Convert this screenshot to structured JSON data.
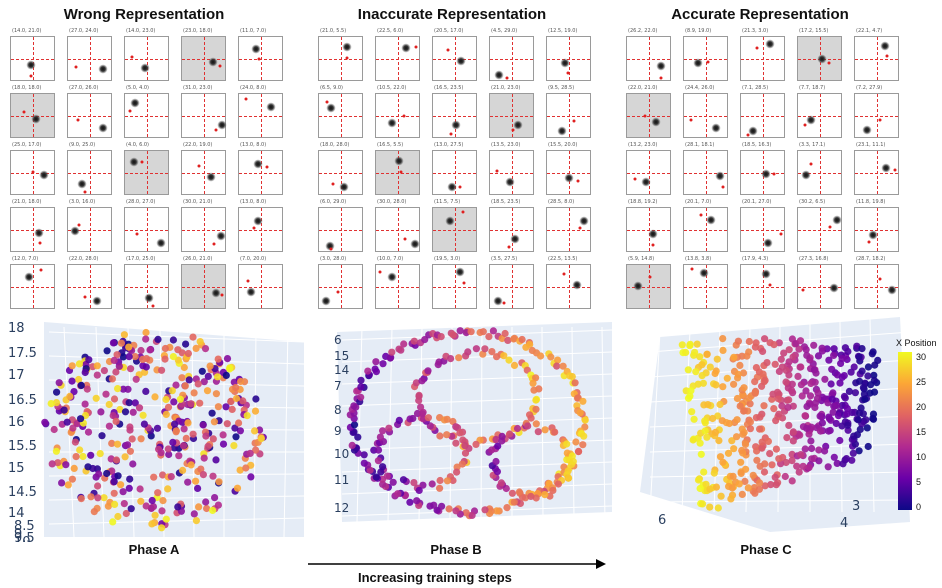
{
  "titles": {
    "wrong": "Wrong Representation",
    "inaccurate": "Inaccurate Representation",
    "accurate": "Accurate Representation"
  },
  "phases": {
    "a": "Phase A",
    "b": "Phase B",
    "c": "Phase C"
  },
  "arrow_label": "Increasing training steps",
  "colorbar": {
    "title": "X Position",
    "ticks": [
      "30",
      "25",
      "20",
      "15",
      "10",
      "5",
      "0"
    ]
  },
  "colors": {
    "crosshair": "#e03131",
    "shaded_cell": "#d6d6d6",
    "colormap": [
      "#0d0887",
      "#6a00a8",
      "#b12a90",
      "#e16462",
      "#fca636",
      "#f0f921"
    ]
  },
  "panel_labels": {
    "wrong": [
      "(14.0, 21.0)",
      "(27.0, 24.0)",
      "(14.0, 23.0)",
      "(23.0, 18.0)",
      "(11.0, 7.0)",
      "(18.0, 18.0)",
      "(27.0, 26.0)",
      "(5.0, 4.0)",
      "(31.0, 23.0)",
      "(24.0, 8.0)",
      "(25.0, 17.0)",
      "(9.0, 25.0)",
      "(4.0, 6.0)",
      "(22.0, 19.0)",
      "(13.0, 8.0)",
      "(21.0, 18.0)",
      "(3.0, 16.0)",
      "(28.0, 27.0)",
      "(30.0, 21.0)",
      "(13.0, 8.0)",
      "(12.0, 7.0)",
      "(22.0, 28.0)",
      "(17.0, 25.0)",
      "(26.0, 21.0)",
      "(7.0, 20.0)"
    ],
    "inaccurate": [
      "(21.0, 5.5)",
      "(22.5, 6.0)",
      "(20.5, 17.0)",
      "(4.5, 29.0)",
      "(12.5, 19.0)",
      "(6.5, 9.0)",
      "(10.5, 22.0)",
      "(16.5, 23.5)",
      "(21.0, 23.0)",
      "(9.5, 28.5)",
      "(18.0, 28.0)",
      "(16.5, 5.5)",
      "(13.0, 27.5)",
      "(13.5, 23.0)",
      "(15.5, 20.0)",
      "(6.0, 29.0)",
      "(30.0, 28.0)",
      "(11.5, 7.5)",
      "(18.5, 23.5)",
      "(28.5, 8.0)",
      "(3.0, 28.0)",
      "(10.0, 7.0)",
      "(19.5, 3.0)",
      "(3.5, 27.5)",
      "(22.5, 13.5)"
    ],
    "accurate": [
      "(26.2, 22.0)",
      "(8.9, 19.0)",
      "(21.3, 3.0)",
      "(17.2, 15.5)",
      "(22.1, 4.7)",
      "(22.0, 21.0)",
      "(24.4, 26.0)",
      "(7.1, 28.5)",
      "(7.7, 18.7)",
      "(7.2, 27.9)",
      "(13.2, 23.0)",
      "(28.1, 18.1)",
      "(18.5, 16.3)",
      "(3.3, 17.1)",
      "(23.1, 11.1)",
      "(18.8, 19.2)",
      "(20.1, 7.0)",
      "(20.1, 27.0)",
      "(30.2, 6.5)",
      "(11.8, 19.8)",
      "(5.9, 14.8)",
      "(13.8, 3.8)",
      "(17.9, 4.3)",
      "(27.3, 16.8)",
      "(28.7, 18.2)"
    ]
  },
  "chart_data": [
    {
      "type": "scatter",
      "panel": "Phase A",
      "projection": "3d",
      "color_by": "X Position",
      "color_range": [
        0,
        31
      ],
      "axis_tick_labels": [
        "18",
        "17.5",
        "17",
        "16.5",
        "16",
        "15.5",
        "15",
        "14.5",
        "14",
        "8.5",
        "9",
        "9.5",
        "10"
      ],
      "points_approx": 400,
      "pattern": "roughly uniform disk of points with colors randomly mixed (no structure)"
    },
    {
      "type": "scatter",
      "panel": "Phase B",
      "projection": "3d",
      "color_by": "X Position",
      "color_range": [
        0,
        31
      ],
      "axis_tick_labels": [
        "6",
        "15",
        "14",
        "7",
        "8",
        "9",
        "10",
        "11",
        "12"
      ],
      "points_approx": 400,
      "pattern": "ring-like closed curves with partially separated colors"
    },
    {
      "type": "scatter",
      "panel": "Phase C",
      "projection": "3d",
      "color_by": "X Position",
      "color_range": [
        0,
        31
      ],
      "axis_tick_labels": [
        "6",
        "4",
        "3"
      ],
      "points_approx": 400,
      "pattern": "smooth sheet with color gradient from yellow (left) to dark purple (right)"
    }
  ]
}
